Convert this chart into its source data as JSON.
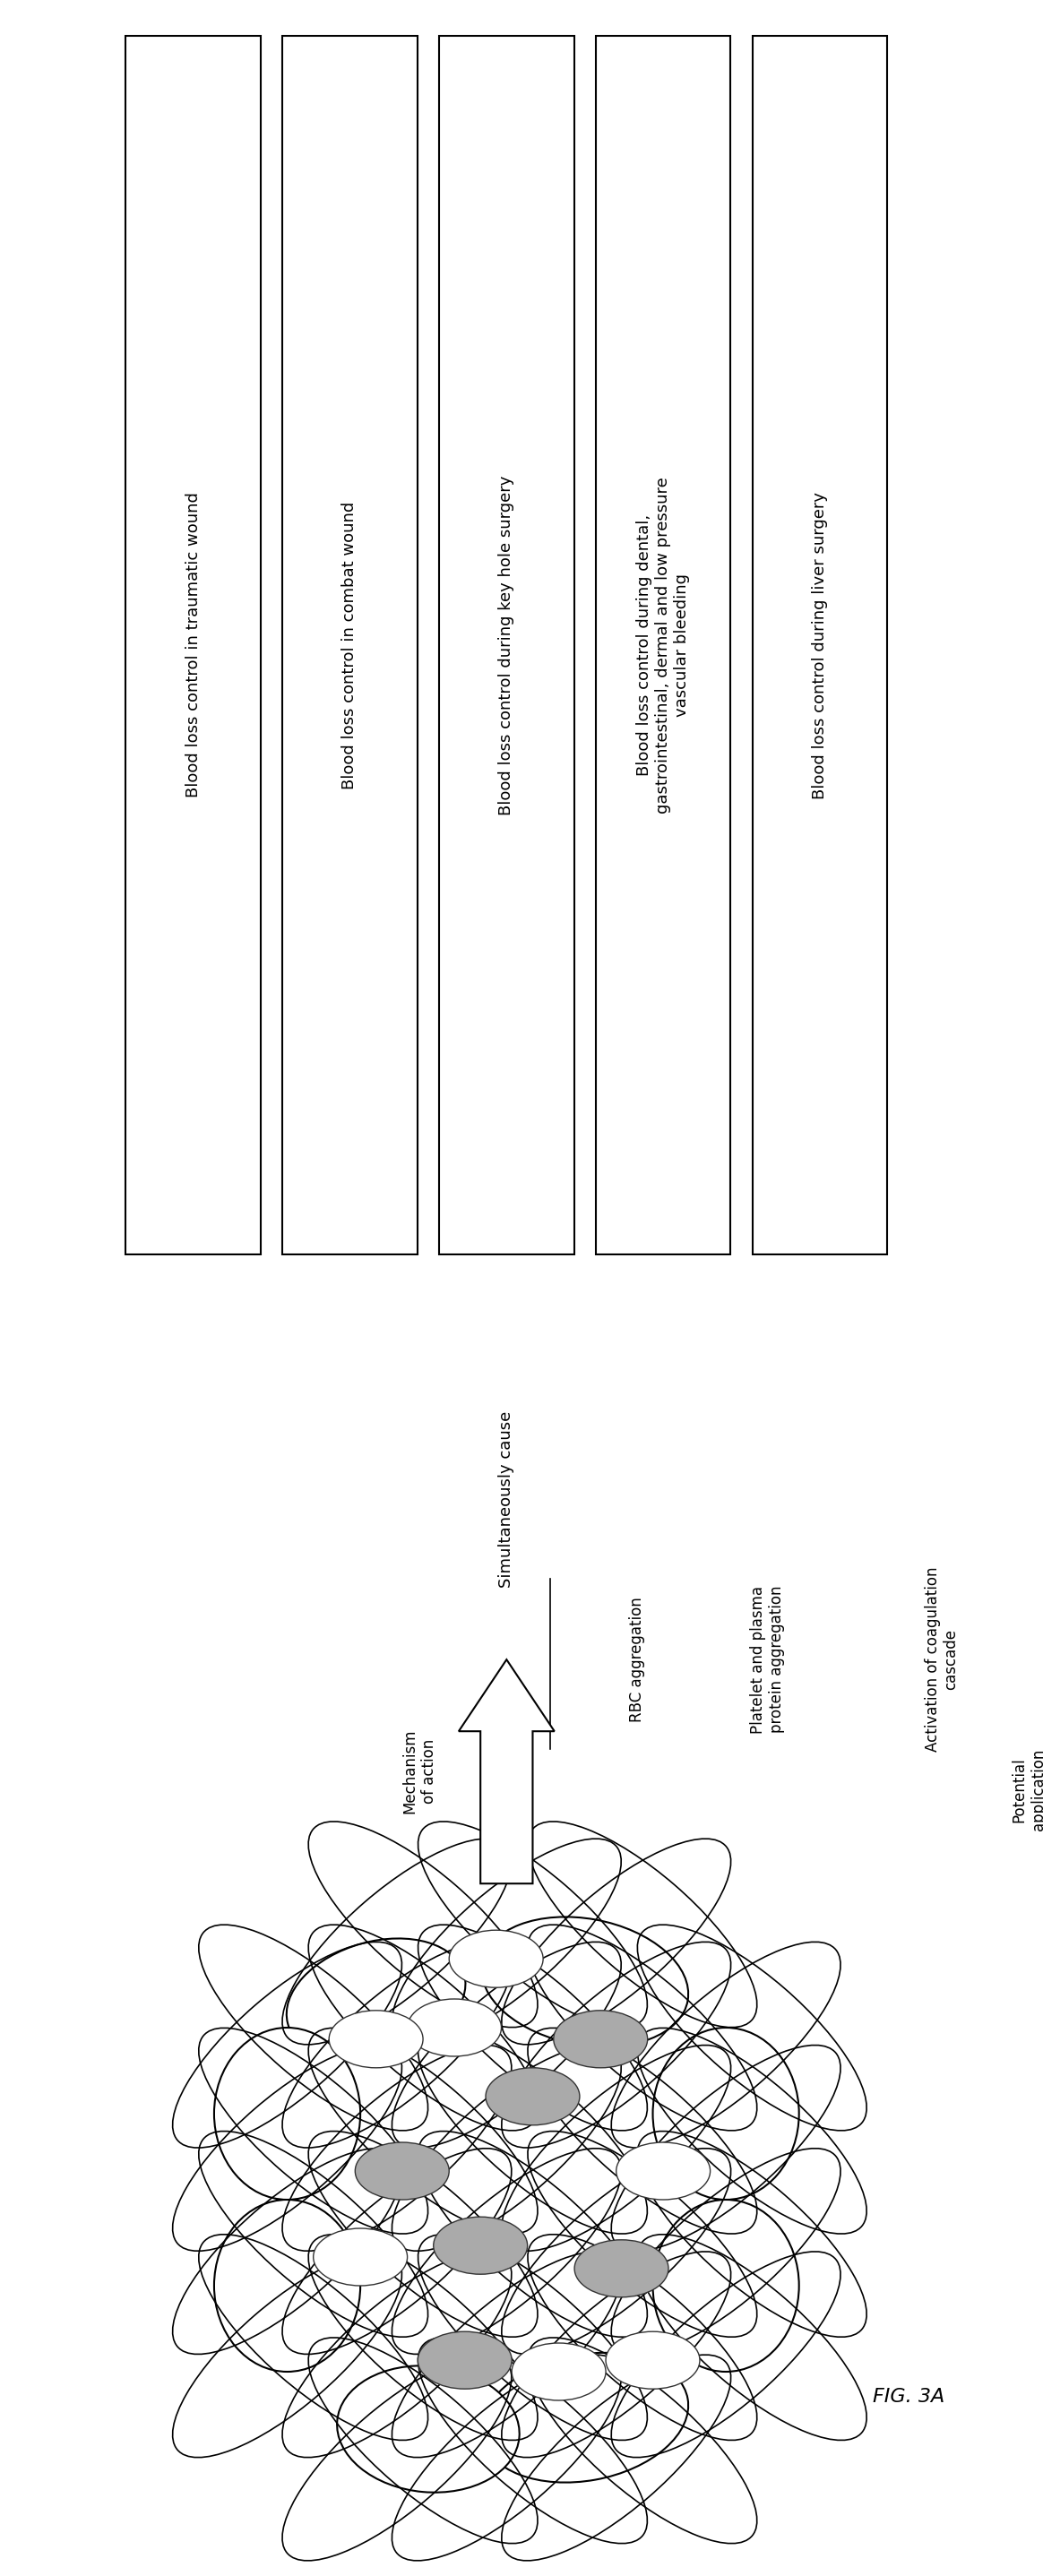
{
  "fig_label": "FIG. 3A",
  "background_color": "#ffffff",
  "mechanism_label": "Mechanism\nof action",
  "simultaneously_header": "Simultaneously cause",
  "simultaneously_items": [
    "RBC aggregation",
    "Platelet and plasma\nprotein aggregation",
    "Activation of coagulation\ncascade"
  ],
  "potential_label": "Potential\napplication",
  "boxes": [
    "Blood loss control in traumatic wound",
    "Blood loss control in combat wound",
    "Blood loss control during key hole surgery",
    "Blood loss control during dental,\ngastrointestinal, dermal and low pressure\nvascular bleeding",
    "Blood loss control during liver surgery"
  ],
  "text_color": "#000000",
  "box_edge_color": "#000000",
  "box_face_color": "#ffffff",
  "arrow_color": "#000000",
  "font_size_boxes": 13,
  "font_size_labels": 12,
  "font_size_sim": 13,
  "font_size_fig": 16
}
